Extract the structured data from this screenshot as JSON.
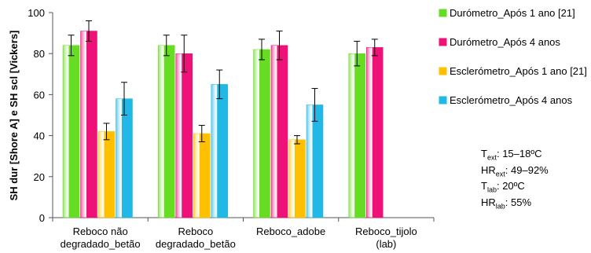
{
  "chart_data": {
    "type": "bar",
    "ylabel": "SH dur [Shore A] e SH scl [Vickers]",
    "xlabel": "",
    "ylim": [
      0,
      100
    ],
    "yticks": [
      0,
      20,
      40,
      60,
      80,
      100
    ],
    "grid": false,
    "legend_position": "right",
    "categories": [
      [
        "Reboco não",
        "degradado_betão"
      ],
      [
        "Reboco",
        "degradado_betão"
      ],
      [
        "Reboco_adobe"
      ],
      [
        "Reboco_tijolo",
        "(lab)"
      ]
    ],
    "series": [
      {
        "name": "Durómetro_Após 1 ano [21]",
        "color": "#66dd22",
        "values": [
          84,
          84,
          82,
          80
        ],
        "errors": [
          5,
          5,
          5,
          6
        ]
      },
      {
        "name": "Durómetro_Após 4 anos",
        "color": "#ee1177",
        "values": [
          91,
          80,
          84,
          83
        ],
        "errors": [
          5,
          9,
          7,
          4
        ]
      },
      {
        "name": "Esclerómetro_Após 1 ano [21]",
        "color": "#ffc000",
        "values": [
          42,
          41,
          38,
          null
        ],
        "errors": [
          4,
          4,
          2,
          null
        ]
      },
      {
        "name": "Esclerómetro_Após 4 anos",
        "color": "#22b8e6",
        "values": [
          58,
          65,
          55,
          null
        ],
        "errors": [
          8,
          7,
          8,
          null
        ]
      }
    ],
    "annotations": {
      "conditions": [
        {
          "base": "T",
          "sub": "ext",
          "value": ":  15–18ºC"
        },
        {
          "base": "HR",
          "sub": "ext",
          "value": ":  49–92%"
        },
        {
          "base": "T",
          "sub": "lab",
          "value": ":  20ºC"
        },
        {
          "base": "HR",
          "sub": "lab",
          "value": ":  55%"
        }
      ]
    }
  }
}
